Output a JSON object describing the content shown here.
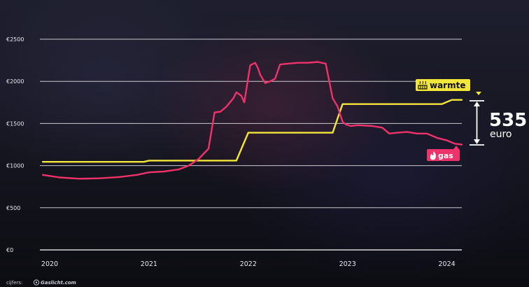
{
  "chart_data": {
    "type": "line",
    "y_ticks": [
      "€0",
      "€500",
      "€1000",
      "€1500",
      "€2000",
      "€2500"
    ],
    "y_tick_values": [
      0,
      500,
      1000,
      1500,
      2000,
      2500
    ],
    "x_ticks": [
      "2020",
      "2021",
      "2022",
      "2023",
      "2024"
    ],
    "x_tick_values": [
      2020,
      2021,
      2022,
      2023,
      2024
    ],
    "xlim": [
      2020,
      2024.2
    ],
    "ylim": [
      0,
      2500
    ],
    "grid": true,
    "series": [
      {
        "name": "warmte",
        "color": "#f5e63a",
        "x": [
          2019.93,
          2020.95,
          2021.0,
          2021.88,
          2022.0,
          2022.85,
          2022.95,
          2023.95,
          2024.05,
          2024.15
        ],
        "y": [
          1045,
          1045,
          1060,
          1060,
          1390,
          1390,
          1730,
          1730,
          1780,
          1780
        ]
      },
      {
        "name": "gas",
        "color": "#f0326a",
        "x": [
          2019.93,
          2020.1,
          2020.3,
          2020.5,
          2020.7,
          2020.88,
          2021.0,
          2021.15,
          2021.3,
          2021.4,
          2021.5,
          2021.6,
          2021.66,
          2021.72,
          2021.78,
          2021.85,
          2021.88,
          2021.93,
          2021.96,
          2022.02,
          2022.07,
          2022.1,
          2022.12,
          2022.17,
          2022.22,
          2022.27,
          2022.32,
          2022.4,
          2022.5,
          2022.6,
          2022.7,
          2022.78,
          2022.85,
          2022.9,
          2022.95,
          2022.98,
          2023.03,
          2023.1,
          2023.25,
          2023.35,
          2023.42,
          2023.5,
          2023.6,
          2023.7,
          2023.8,
          2023.9,
          2024.0,
          2024.08,
          2024.15
        ],
        "y": [
          890,
          860,
          845,
          850,
          865,
          890,
          920,
          930,
          955,
          1000,
          1080,
          1200,
          1630,
          1640,
          1700,
          1800,
          1870,
          1830,
          1750,
          2190,
          2220,
          2150,
          2080,
          1980,
          2000,
          2030,
          2200,
          2210,
          2220,
          2220,
          2230,
          2210,
          1800,
          1700,
          1520,
          1490,
          1470,
          1480,
          1470,
          1450,
          1380,
          1390,
          1400,
          1380,
          1380,
          1330,
          1300,
          1260,
          1250
        ]
      }
    ]
  },
  "labels": {
    "warmte": "warmte",
    "gas": "gas",
    "difference_value": "535",
    "difference_unit": "euro",
    "source_prefix": "cijfers:",
    "source_brand": "Gaslicht.com"
  },
  "colors": {
    "warmte": "#f5e63a",
    "gas": "#f0326a",
    "text": "#ffffff"
  },
  "icons": {
    "warmte": "radiator-heat-icon",
    "gas": "flame-icon",
    "source": "gaslicht-logo-icon"
  }
}
